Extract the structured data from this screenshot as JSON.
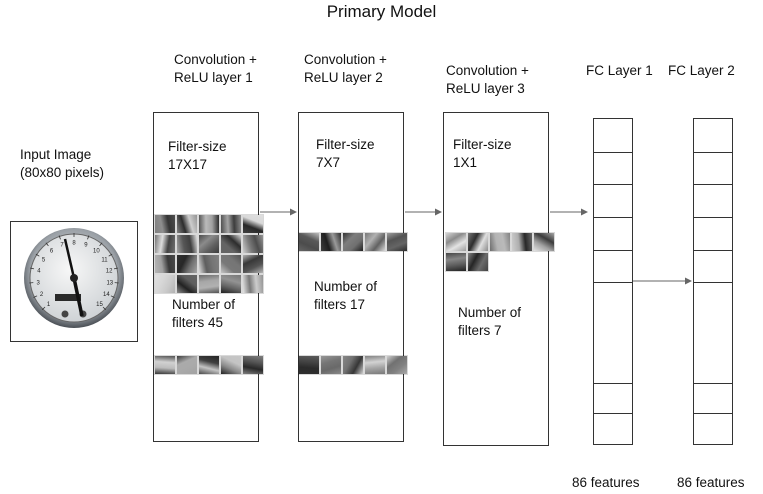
{
  "title": "Primary Model",
  "input": {
    "label_line1": "Input Image",
    "label_line2": "(80x80 pixels)",
    "gauge_ticks": [
      "1",
      "2",
      "3",
      "4",
      "5",
      "6",
      "7",
      "8",
      "9",
      "10",
      "11",
      "12",
      "13",
      "14",
      "15"
    ]
  },
  "layers": [
    {
      "head1": "Convolution +",
      "head2": "ReLU layer 1",
      "fs1": "Filter-size",
      "fs2": "17X17",
      "nf1": "Number of",
      "nf2": "filters 45"
    },
    {
      "head1": "Convolution +",
      "head2": "ReLU layer 2",
      "fs1": "Filter-size",
      "fs2": "7X7",
      "nf1": "Number of",
      "nf2": "filters 17"
    },
    {
      "head1": "Convolution +",
      "head2": "ReLU layer 3",
      "fs1": "Filter-size",
      "fs2": "1X1",
      "nf1": "Number of",
      "nf2": "filters 7"
    }
  ],
  "fc": [
    {
      "head": "FC Layer 1",
      "footer": "86 features"
    },
    {
      "head": "FC Layer 2",
      "footer": "86 features"
    }
  ]
}
